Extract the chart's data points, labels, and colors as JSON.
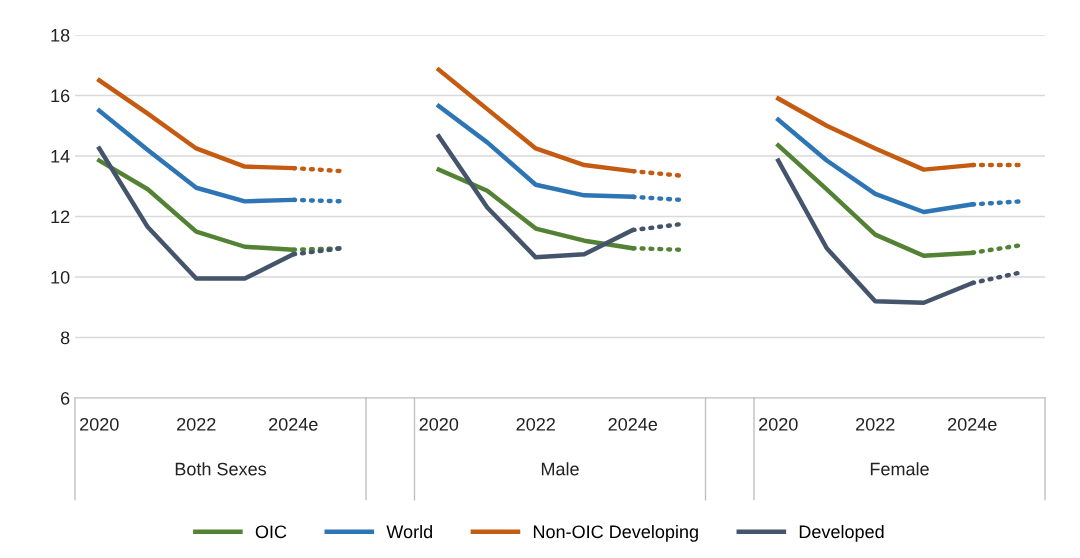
{
  "chart_data": {
    "type": "line",
    "categories": [
      "2020",
      null,
      "2022",
      null,
      "2024e",
      null,
      null,
      "2020",
      null,
      "2022",
      null,
      "2024e",
      null,
      null,
      "2020",
      null,
      "2022",
      null,
      "2024e",
      null
    ],
    "annotations": [
      "Both Sexes",
      "Male",
      "Female"
    ],
    "ylim": [
      6,
      18
    ],
    "yticks": [
      6,
      8,
      10,
      12,
      14,
      16,
      18
    ],
    "grid": "y",
    "legend": "bottom",
    "marker": "none",
    "series": [
      {
        "name": "OIC",
        "color": "#548235",
        "line_style": "solid",
        "values": [
          13.85,
          12.9,
          11.5,
          11.0,
          10.9,
          null,
          null,
          13.55,
          12.85,
          11.6,
          11.2,
          10.95,
          null,
          null,
          14.35,
          12.9,
          11.4,
          10.7,
          10.8,
          null
        ]
      },
      {
        "name": "World",
        "color": "#2e75b6",
        "line_style": "solid",
        "values": [
          15.5,
          14.2,
          12.95,
          12.5,
          12.55,
          null,
          null,
          15.65,
          14.45,
          13.05,
          12.7,
          12.65,
          null,
          null,
          15.2,
          13.85,
          12.75,
          12.15,
          12.4,
          null
        ]
      },
      {
        "name": "Non-OIC Developing",
        "color": "#c55a11",
        "line_style": "solid",
        "values": [
          16.5,
          15.4,
          14.25,
          13.65,
          13.6,
          null,
          null,
          16.85,
          15.55,
          14.25,
          13.7,
          13.5,
          null,
          null,
          15.9,
          15.0,
          14.25,
          13.55,
          13.7,
          null
        ]
      },
      {
        "name": "Developed",
        "color": "#44546a",
        "line_style": "solid",
        "values": [
          14.25,
          11.65,
          9.95,
          9.95,
          10.75,
          null,
          null,
          14.65,
          12.3,
          10.65,
          10.75,
          11.55,
          null,
          null,
          13.85,
          10.95,
          9.2,
          9.15,
          9.8,
          null
        ]
      },
      {
        "color": "#548235",
        "line_style": "dotted",
        "values": [
          null,
          null,
          null,
          null,
          10.9,
          10.95,
          null,
          null,
          null,
          null,
          null,
          10.95,
          10.9,
          null,
          null,
          null,
          null,
          null,
          10.8,
          11.05
        ]
      },
      {
        "color": "#2e75b6",
        "line_style": "dotted",
        "values": [
          null,
          null,
          null,
          null,
          12.55,
          12.5,
          null,
          null,
          null,
          null,
          null,
          12.65,
          12.55,
          null,
          null,
          null,
          null,
          null,
          12.4,
          12.5
        ]
      },
      {
        "color": "#c55a11",
        "line_style": "dotted",
        "values": [
          null,
          null,
          null,
          null,
          13.6,
          13.5,
          null,
          null,
          null,
          null,
          null,
          13.5,
          13.35,
          null,
          null,
          null,
          null,
          null,
          13.7,
          13.7
        ]
      },
      {
        "color": "#44546a",
        "line_style": "dotted",
        "values": [
          null,
          null,
          null,
          null,
          10.75,
          10.95,
          null,
          null,
          null,
          null,
          null,
          11.55,
          11.75,
          null,
          null,
          null,
          null,
          null,
          9.8,
          10.15
        ]
      }
    ]
  }
}
